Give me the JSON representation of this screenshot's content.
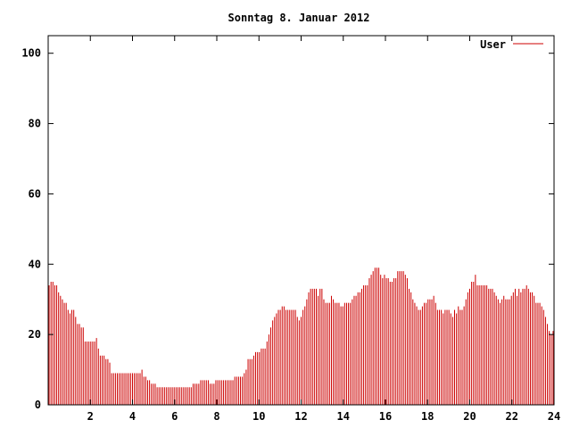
{
  "chart_data": {
    "type": "bar",
    "title": "Sonntag 8. Januar 2012",
    "xlabel": "",
    "ylabel": "",
    "xlim": [
      0,
      24
    ],
    "ylim": [
      0,
      105
    ],
    "x_ticks": [
      "2",
      "4",
      "6",
      "8",
      "10",
      "12",
      "14",
      "16",
      "18",
      "20",
      "22",
      "24"
    ],
    "y_ticks": [
      "0",
      "20",
      "40",
      "60",
      "80",
      "100"
    ],
    "grid": false,
    "legend": "top-right",
    "series": [
      {
        "name": "User",
        "color": "#cc0000",
        "values": [
          34,
          35,
          35,
          34,
          34,
          32,
          31,
          30,
          29,
          29,
          27,
          26,
          27,
          27,
          25,
          23,
          23,
          22,
          22,
          18,
          18,
          18,
          18,
          18,
          18,
          19,
          16,
          14,
          14,
          14,
          13,
          13,
          12,
          9,
          9,
          9,
          9,
          9,
          9,
          9,
          9,
          9,
          9,
          9,
          9,
          9,
          9,
          9,
          9,
          10,
          8,
          8,
          7,
          7,
          6,
          6,
          6,
          5,
          5,
          5,
          5,
          5,
          5,
          5,
          5,
          5,
          5,
          5,
          5,
          5,
          5,
          5,
          5,
          5,
          5,
          5,
          6,
          6,
          6,
          6,
          7,
          7,
          7,
          7,
          7,
          6,
          6,
          6,
          7,
          7,
          7,
          7,
          7,
          7,
          7,
          7,
          7,
          7,
          8,
          8,
          8,
          8,
          8,
          9,
          10,
          13,
          13,
          13,
          14,
          15,
          15,
          15,
          16,
          16,
          16,
          18,
          20,
          22,
          24,
          25,
          26,
          27,
          27,
          28,
          28,
          27,
          27,
          27,
          27,
          27,
          27,
          25,
          24,
          25,
          27,
          28,
          30,
          32,
          33,
          33,
          33,
          33,
          31,
          33,
          33,
          30,
          29,
          29,
          29,
          31,
          30,
          29,
          29,
          29,
          28,
          28,
          29,
          29,
          29,
          29,
          30,
          31,
          31,
          32,
          32,
          33,
          34,
          34,
          34,
          36,
          37,
          38,
          39,
          39,
          39,
          37,
          36,
          37,
          36,
          36,
          35,
          35,
          36,
          36,
          38,
          38,
          38,
          38,
          37,
          36,
          33,
          32,
          30,
          29,
          28,
          27,
          27,
          28,
          29,
          29,
          30,
          30,
          30,
          31,
          29,
          27,
          27,
          27,
          26,
          27,
          27,
          27,
          26,
          25,
          27,
          26,
          28,
          27,
          27,
          28,
          30,
          32,
          33,
          35,
          35,
          37,
          34,
          34,
          34,
          34,
          34,
          34,
          33,
          33,
          33,
          32,
          31,
          30,
          29,
          30,
          31,
          30,
          30,
          30,
          31,
          32,
          33,
          31,
          33,
          32,
          33,
          33,
          34,
          33,
          32,
          32,
          31,
          29,
          29,
          29,
          28,
          27,
          25,
          23,
          21,
          20,
          21
        ]
      }
    ]
  }
}
